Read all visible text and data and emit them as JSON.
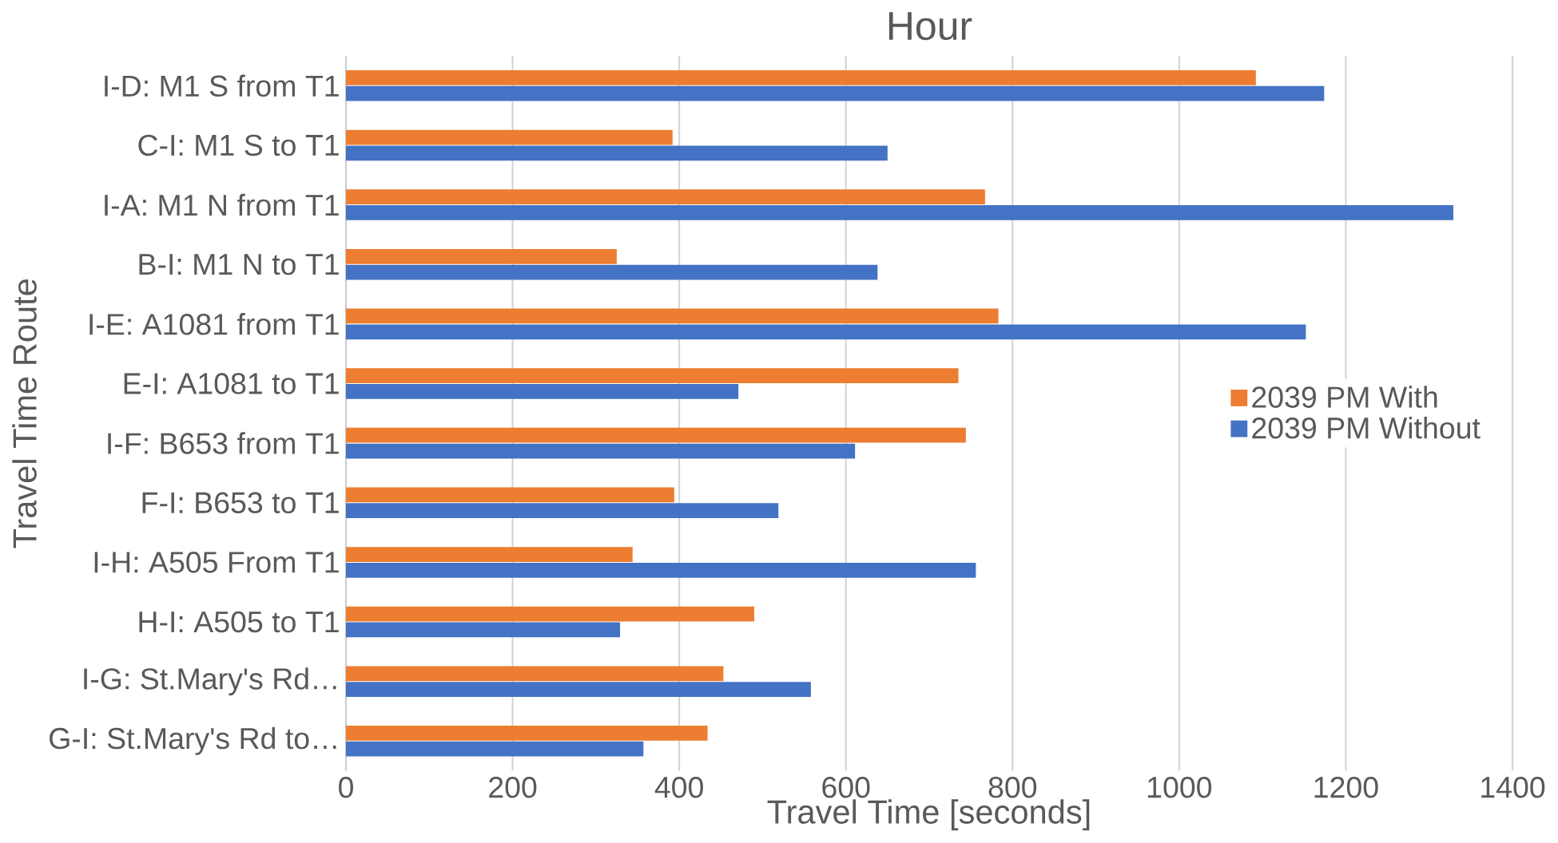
{
  "chart_data": {
    "type": "bar",
    "orientation": "horizontal",
    "title": "Hour",
    "xlabel": "Travel Time [seconds]",
    "ylabel": "Travel Time Route",
    "categories": [
      "I-D: M1 S from T1",
      "C-I: M1 S to T1",
      "I-A: M1 N from T1",
      "B-I: M1 N to T1",
      "I-E: A1081 from T1",
      "E-I: A1081 to T1",
      "I-F: B653 from T1",
      "F-I: B653 to T1",
      "I-H: A505 From T1",
      "H-I: A505 to T1",
      "I-G: St.Mary's Rd…",
      "G-I: St.Mary's Rd to…"
    ],
    "series": [
      {
        "name": "2039 PM With",
        "color": "#ed7d31",
        "values": [
          1092,
          392,
          767,
          325,
          783,
          735,
          744,
          394,
          344,
          490,
          453,
          434
        ]
      },
      {
        "name": "2039 PM Without",
        "color": "#4472c4",
        "values": [
          1174,
          650,
          1329,
          638,
          1152,
          471,
          611,
          519,
          756,
          329,
          558,
          357
        ]
      }
    ],
    "xlim": [
      0,
      1400
    ],
    "xticks": [
      0,
      200,
      400,
      600,
      800,
      1000,
      1200,
      1400
    ],
    "grid": "x",
    "legend": "right"
  }
}
